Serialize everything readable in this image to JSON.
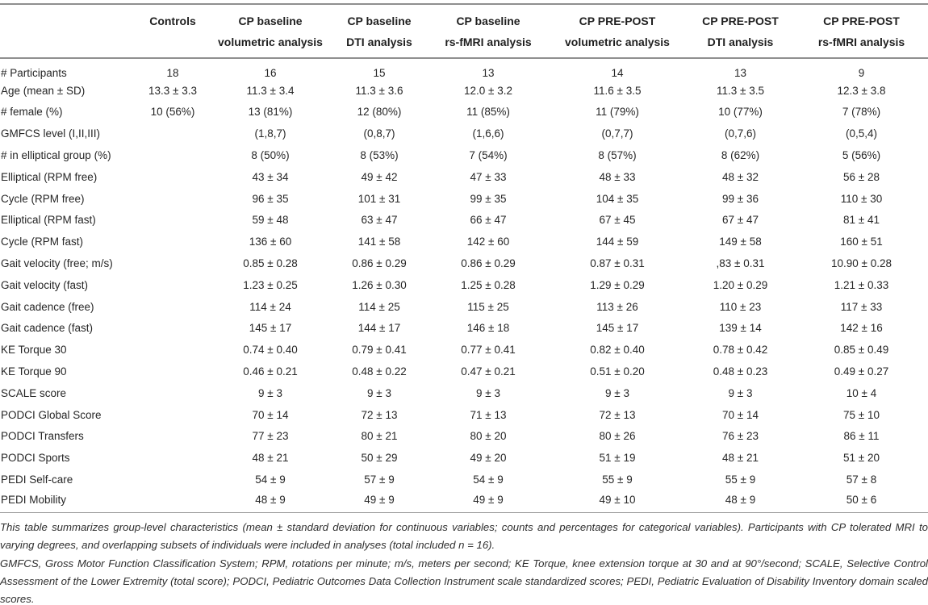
{
  "table": {
    "columns": [
      {
        "line1": "",
        "line2": ""
      },
      {
        "line1": "Controls",
        "line2": ""
      },
      {
        "line1": "CP baseline",
        "line2": "volumetric analysis"
      },
      {
        "line1": "CP baseline",
        "line2": "DTI analysis"
      },
      {
        "line1": "CP baseline",
        "line2": "rs-fMRI analysis"
      },
      {
        "line1": "CP PRE-POST",
        "line2": "volumetric analysis"
      },
      {
        "line1": "CP PRE-POST",
        "line2": "DTI analysis"
      },
      {
        "line1": "CP PRE-POST",
        "line2": "rs-fMRI analysis"
      }
    ],
    "rows": [
      {
        "label": "# Participants",
        "values": [
          "18",
          "16",
          "15",
          "13",
          "14",
          "13",
          "9"
        ]
      },
      {
        "label": "Age (mean ± SD)",
        "values": [
          "13.3 ± 3.3",
          "11.3 ± 3.4",
          "11.3 ± 3.6",
          "12.0 ± 3.2",
          "11.6 ± 3.5",
          "11.3 ± 3.5",
          "12.3 ± 3.8"
        ]
      },
      {
        "label": "# female (%)",
        "values": [
          "10 (56%)",
          "13 (81%)",
          "12 (80%)",
          "11 (85%)",
          "11 (79%)",
          "10 (77%)",
          "7 (78%)"
        ]
      },
      {
        "label": "GMFCS level (I,II,III)",
        "values": [
          "",
          "(1,8,7)",
          "(0,8,7)",
          "(1,6,6)",
          "(0,7,7)",
          "(0,7,6)",
          "(0,5,4)"
        ]
      },
      {
        "label": "# in elliptical group (%)",
        "values": [
          "",
          "8 (50%)",
          "8 (53%)",
          "7 (54%)",
          "8 (57%)",
          "8 (62%)",
          "5 (56%)"
        ]
      },
      {
        "label": "Elliptical (RPM free)",
        "values": [
          "",
          "43 ± 34",
          "49 ± 42",
          "47 ± 33",
          "48 ± 33",
          "48 ± 32",
          "56 ± 28"
        ]
      },
      {
        "label": "Cycle (RPM free)",
        "values": [
          "",
          "96 ± 35",
          "101 ± 31",
          "99 ± 35",
          "104 ± 35",
          "99 ± 36",
          "110 ± 30"
        ]
      },
      {
        "label": "Elliptical (RPM fast)",
        "values": [
          "",
          "59 ± 48",
          "63 ± 47",
          "66 ± 47",
          "67 ± 45",
          "67 ± 47",
          "81 ± 41"
        ]
      },
      {
        "label": "Cycle (RPM fast)",
        "values": [
          "",
          "136 ± 60",
          "141 ± 58",
          "142 ± 60",
          "144 ± 59",
          "149 ± 58",
          "160 ± 51"
        ]
      },
      {
        "label": "Gait velocity (free; m/s)",
        "values": [
          "",
          "0.85 ± 0.28",
          "0.86 ± 0.29",
          "0.86 ± 0.29",
          "0.87 ± 0.31",
          ",83 ± 0.31",
          "10.90 ± 0.28"
        ]
      },
      {
        "label": "Gait velocity (fast)",
        "values": [
          "",
          "1.23 ± 0.25",
          "1.26 ± 0.30",
          "1.25 ± 0.28",
          "1.29 ± 0.29",
          "1.20 ± 0.29",
          "1.21 ± 0.33"
        ]
      },
      {
        "label": "Gait cadence (free)",
        "values": [
          "",
          "114 ± 24",
          "114 ± 25",
          "115 ± 25",
          "113 ± 26",
          "110 ± 23",
          "117 ± 33"
        ]
      },
      {
        "label": "Gait cadence (fast)",
        "values": [
          "",
          "145 ± 17",
          "144 ± 17",
          "146 ± 18",
          "145 ± 17",
          "139 ± 14",
          "142 ± 16"
        ]
      },
      {
        "label": "KE Torque 30",
        "values": [
          "",
          "0.74 ± 0.40",
          "0.79 ± 0.41",
          "0.77 ± 0.41",
          "0.82 ± 0.40",
          "0.78 ± 0.42",
          "0.85 ± 0.49"
        ]
      },
      {
        "label": "KE Torque 90",
        "values": [
          "",
          "0.46 ± 0.21",
          "0.48 ± 0.22",
          "0.47 ± 0.21",
          "0.51 ± 0.20",
          "0.48 ± 0.23",
          "0.49 ± 0.27"
        ]
      },
      {
        "label": "SCALE score",
        "values": [
          "",
          "9 ± 3",
          "9 ± 3",
          "9 ± 3",
          "9 ± 3",
          "9 ± 3",
          "10 ± 4"
        ]
      },
      {
        "label": "PODCI Global Score",
        "values": [
          "",
          "70 ± 14",
          "72 ± 13",
          "71 ± 13",
          "72 ± 13",
          "70 ± 14",
          "75 ± 10"
        ]
      },
      {
        "label": "PODCI Transfers",
        "values": [
          "",
          "77 ± 23",
          "80 ± 21",
          "80 ± 20",
          "80 ± 26",
          "76 ± 23",
          "86 ± 11"
        ]
      },
      {
        "label": "PODCI Sports",
        "values": [
          "",
          "48 ± 21",
          "50 ± 29",
          "49 ± 20",
          "51 ± 19",
          "48 ± 21",
          "51 ± 20"
        ]
      },
      {
        "label": "PEDI Self-care",
        "values": [
          "",
          "54 ± 9",
          "57 ± 9",
          "54 ± 9",
          "55 ± 9",
          "55 ± 9",
          "57 ± 8"
        ]
      },
      {
        "label": "PEDI Mobility",
        "values": [
          "",
          "48 ± 9",
          "49 ± 9",
          "49 ± 9",
          "49 ± 10",
          "48 ± 9",
          "50 ± 6"
        ]
      }
    ]
  },
  "footnotes": {
    "paragraph1": "This table summarizes group-level characteristics (mean ± standard deviation for continuous variables; counts and percentages for categorical variables). Participants with CP tolerated MRI to varying degrees, and overlapping subsets of individuals were included in analyses (total included n = 16).",
    "paragraph2": "GMFCS, Gross Motor Function Classification System; RPM, rotations per minute; m/s, meters per second; KE Torque, knee extension torque at 30 and at 90°/second; SCALE, Selective Control Assessment of the Lower Extremity (total score); PODCI, Pediatric Outcomes Data Collection Instrument scale standardized scores; PEDI, Pediatric Evaluation of Disability Inventory domain scaled scores."
  },
  "colors": {
    "text": "#262626",
    "rule": "#8f8f8f",
    "footnote_text": "#2e2e2e",
    "background": "#ffffff"
  }
}
